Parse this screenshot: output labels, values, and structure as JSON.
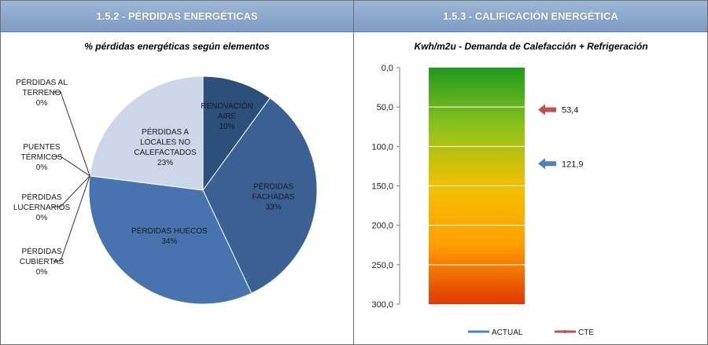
{
  "panels": {
    "left_header": "1.5.2 - PÉRDIDAS ENERGÉTICAS",
    "right_header": "1.5.3 - CALIFICACIÓN ENERGÉTICA"
  },
  "chart_data": [
    {
      "type": "pie",
      "title": "% pérdidas energéticas según elementos",
      "slices": [
        {
          "label": [
            "RENOVACIÓN",
            "AIRE"
          ],
          "percent_label": "10%",
          "value": 10,
          "color": "#2c4f7c"
        },
        {
          "label": [
            "PÉRDIDAS",
            "FACHADAS"
          ],
          "percent_label": "33%",
          "value": 33,
          "color": "#3a6094"
        },
        {
          "label": [
            "PÉRDIDAS HUECOS"
          ],
          "percent_label": "34%",
          "value": 34,
          "color": "#4774ae"
        },
        {
          "label": [
            "PÉRDIDAS",
            "CUBIERTAS"
          ],
          "percent_label": "0%",
          "value": 0,
          "color": "#5d86bb"
        },
        {
          "label": [
            "PÉRDIDAS",
            "LUCERNARIOS"
          ],
          "percent_label": "0%",
          "value": 0,
          "color": "#7a9bc8"
        },
        {
          "label": [
            "PUENTES",
            "TÉRMICOS"
          ],
          "percent_label": "0%",
          "value": 0,
          "color": "#98b1d5"
        },
        {
          "label": [
            "PÉRDIDAS AL",
            "TERRENO"
          ],
          "percent_label": "0%",
          "value": 0,
          "color": "#b4c6e0"
        },
        {
          "label": [
            "PÉRDIDAS A",
            "LOCALES NO",
            "CALEFACTADOS"
          ],
          "percent_label": "23%",
          "value": 23,
          "color": "#ccd6e8"
        }
      ]
    },
    {
      "type": "bar",
      "title": "Kwh/m2u - Demanda de Calefacción + Refrigeración",
      "ylim": [
        0,
        300
      ],
      "y_inverted": true,
      "y_ticks": [
        0,
        50,
        100,
        150,
        200,
        250,
        300
      ],
      "y_tick_labels": [
        "0,0",
        "50,0",
        "100,0",
        "150,0",
        "200,0",
        "250,0",
        "300,0"
      ],
      "gradient_colors": [
        "#1f9a1f",
        "#8cc21c",
        "#f2c000",
        "#ff9e00",
        "#e03a00"
      ],
      "series": [
        {
          "name": "ACTUAL",
          "value": 121.9,
          "value_label": "121,9",
          "color": "#4f81bd"
        },
        {
          "name": "CTE",
          "value": 53.4,
          "value_label": "53,4",
          "color": "#c0504d"
        }
      ]
    }
  ]
}
